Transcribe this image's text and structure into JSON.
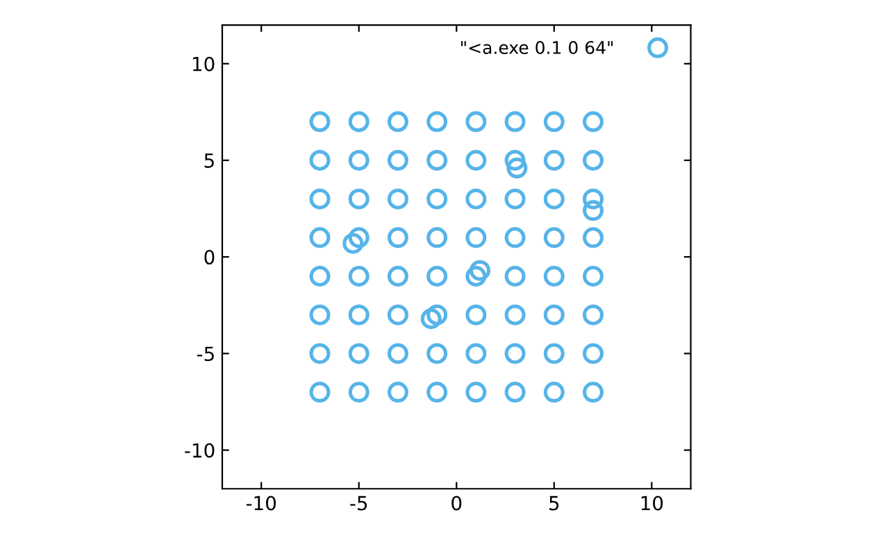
{
  "chart_data": {
    "type": "scatter",
    "xlim": [
      -12,
      12
    ],
    "ylim": [
      -12,
      12
    ],
    "xticks": [
      -10,
      -5,
      0,
      5,
      10
    ],
    "yticks": [
      -10,
      -5,
      0,
      5,
      10
    ],
    "grid": false,
    "legend": "top right",
    "marker": "circle",
    "series": [
      {
        "name": "\"<a.exe 0.1 0 64\"",
        "color": "#56b4e9",
        "x": [
          -7,
          -5,
          -3,
          -1,
          1,
          3,
          5,
          7,
          -7,
          -5,
          -3,
          -1,
          1,
          3,
          5,
          7,
          -7,
          -5,
          -3,
          -1,
          1,
          3,
          5,
          7,
          -7,
          -5,
          -3,
          -1,
          1,
          3,
          5,
          7,
          -7,
          -5,
          -3,
          -1,
          1,
          3,
          5,
          7,
          -7,
          -5,
          -3,
          -1,
          1,
          3,
          5,
          7,
          -7,
          -5,
          -3,
          -1,
          1,
          3,
          5,
          7,
          -7,
          -5,
          -3,
          -1,
          1,
          3,
          5,
          7,
          7,
          -5.3,
          1.2,
          -1.3,
          3.1
        ],
        "values": [
          7,
          7,
          7,
          7,
          7,
          7,
          7,
          7,
          5,
          5,
          5,
          5,
          5,
          5,
          5,
          5,
          3,
          3,
          3,
          3,
          3,
          3,
          3,
          3,
          1,
          1,
          1,
          1,
          1,
          1,
          1,
          1,
          -1,
          -1,
          -1,
          -1,
          -1,
          -1,
          -1,
          -1,
          -3,
          -3,
          -3,
          -3,
          -3,
          -3,
          -3,
          -3,
          -5,
          -5,
          -5,
          -5,
          -5,
          -5,
          -5,
          -5,
          -7,
          -7,
          -7,
          -7,
          -7,
          -7,
          -7,
          -7,
          2.4,
          0.7,
          -0.7,
          -3.2,
          4.6
        ]
      }
    ]
  }
}
